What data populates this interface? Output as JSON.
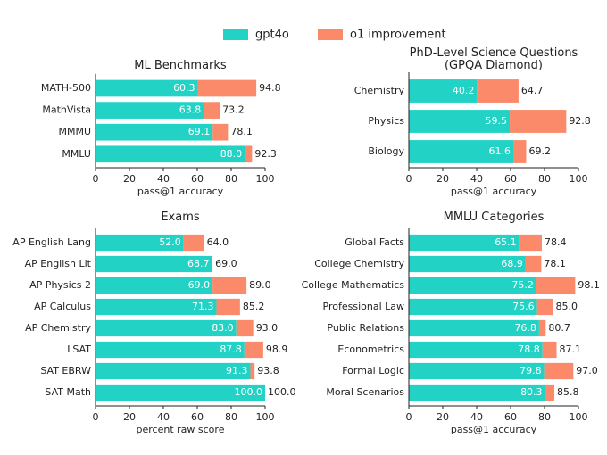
{
  "chart_data": [
    {
      "type": "bar",
      "orientation": "horizontal",
      "title": "ML Benchmarks",
      "categories": [
        "MATH-500",
        "MathVista",
        "MMMU",
        "MMLU"
      ],
      "series": [
        {
          "name": "gpt4o",
          "color": "#22d3c5",
          "values": [
            60.3,
            63.8,
            69.1,
            88.0
          ],
          "value_labels": [
            "60.3",
            "63.8",
            "69.1",
            "88.0"
          ]
        },
        {
          "name": "o1 improvement",
          "color": "#fb8a6b",
          "values": [
            34.5,
            9.4,
            9.0,
            4.3
          ]
        }
      ],
      "totals": [
        94.8,
        73.2,
        78.1,
        92.3
      ],
      "total_labels": [
        "94.8",
        "73.2",
        "78.1",
        "92.3"
      ],
      "xlim": [
        0,
        100
      ],
      "xticks": [
        0,
        20,
        40,
        60,
        80,
        100
      ],
      "xlabel": "pass@1 accuracy"
    },
    {
      "type": "bar",
      "orientation": "horizontal",
      "title": "PhD-Level Science Questions\n(GPQA Diamond)",
      "categories": [
        "Chemistry",
        "Physics",
        "Biology"
      ],
      "series": [
        {
          "name": "gpt4o",
          "color": "#22d3c5",
          "values": [
            40.2,
            59.5,
            61.6
          ],
          "value_labels": [
            "40.2",
            "59.5",
            "61.6"
          ]
        },
        {
          "name": "o1 improvement",
          "color": "#fb8a6b",
          "values": [
            24.5,
            33.3,
            7.6
          ]
        }
      ],
      "totals": [
        64.7,
        92.8,
        69.2
      ],
      "total_labels": [
        "64.7",
        "92.8",
        "69.2"
      ],
      "xlim": [
        0,
        100
      ],
      "xticks": [
        0,
        20,
        40,
        60,
        80,
        100
      ],
      "xlabel": "pass@1 accuracy"
    },
    {
      "type": "bar",
      "orientation": "horizontal",
      "title": "Exams",
      "categories": [
        "AP English Lang",
        "AP English Lit",
        "AP Physics 2",
        "AP Calculus",
        "AP Chemistry",
        "LSAT",
        "SAT EBRW",
        "SAT Math"
      ],
      "series": [
        {
          "name": "gpt4o",
          "color": "#22d3c5",
          "values": [
            52.0,
            68.7,
            69.0,
            71.3,
            83.0,
            87.8,
            91.3,
            100.0
          ],
          "value_labels": [
            "52.0",
            "68.7",
            "69.0",
            "71.3",
            "83.0",
            "87.8",
            "91.3",
            "100.0"
          ]
        },
        {
          "name": "o1 improvement",
          "color": "#fb8a6b",
          "values": [
            12.0,
            0.3,
            20.0,
            13.9,
            10.0,
            11.1,
            2.5,
            0
          ]
        }
      ],
      "totals": [
        64.0,
        69.0,
        89.0,
        85.2,
        93.0,
        98.9,
        93.8,
        100.0
      ],
      "total_labels": [
        "64.0",
        "69.0",
        "89.0",
        "85.2",
        "93.0",
        "98.9",
        "93.8",
        "100.0"
      ],
      "xlim": [
        0,
        100
      ],
      "xticks": [
        0,
        20,
        40,
        60,
        80,
        100
      ],
      "xlabel": "percent raw score"
    },
    {
      "type": "bar",
      "orientation": "horizontal",
      "title": "MMLU Categories",
      "categories": [
        "Global Facts",
        "College Chemistry",
        "College Mathematics",
        "Professional Law",
        "Public Relations",
        "Econometrics",
        "Formal Logic",
        "Moral Scenarios"
      ],
      "series": [
        {
          "name": "gpt4o",
          "color": "#22d3c5",
          "values": [
            65.1,
            68.9,
            75.2,
            75.6,
            76.8,
            78.8,
            79.8,
            80.3
          ],
          "value_labels": [
            "65.1",
            "68.9",
            "75.2",
            "75.6",
            "76.8",
            "78.8",
            "79.8",
            "80.3"
          ]
        },
        {
          "name": "o1 improvement",
          "color": "#fb8a6b",
          "values": [
            13.3,
            9.2,
            22.9,
            9.4,
            3.9,
            8.3,
            17.2,
            5.5
          ]
        }
      ],
      "totals": [
        78.4,
        78.1,
        98.1,
        85.0,
        80.7,
        87.1,
        97.0,
        85.8
      ],
      "total_labels": [
        "78.4",
        "78.1",
        "98.1",
        "85.0",
        "80.7",
        "87.1",
        "97.0",
        "85.8"
      ],
      "xlim": [
        0,
        100
      ],
      "xticks": [
        0,
        20,
        40,
        60,
        80,
        100
      ],
      "xlabel": "pass@1 accuracy"
    }
  ]
}
